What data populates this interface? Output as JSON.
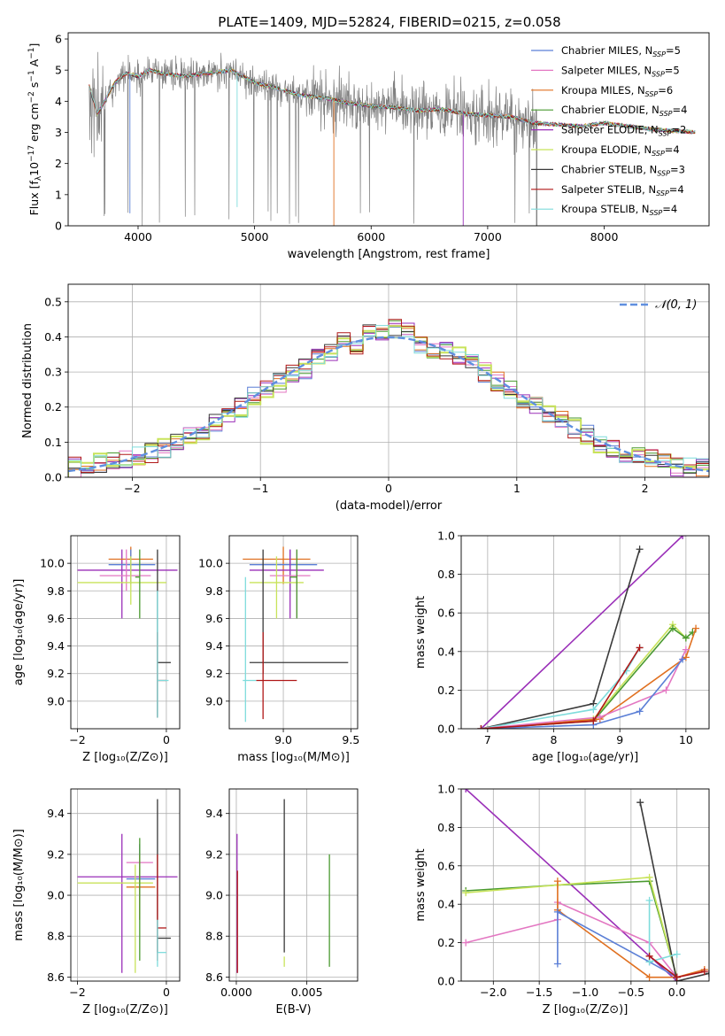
{
  "figure_title": "PLATE=1409, MJD=52824, FIBERID=0215, z=0.058",
  "colors": {
    "chabrier_miles": "#5b7fd6",
    "salpeter_miles": "#e377c2",
    "kroupa_miles": "#e07020",
    "chabrier_elodie": "#4a9a30",
    "salpeter_elodie": "#9a2fb8",
    "kroupa_elodie": "#c8e35a",
    "chabrier_stelib": "#3a3a3a",
    "salpeter_stelib": "#b01818",
    "kroupa_stelib": "#7fdcdc",
    "data_gray": "#808080",
    "normal_curve": "#5f8fdf"
  },
  "chart_data": [
    {
      "id": "spectrum",
      "type": "line",
      "title": "PLATE=1409, MJD=52824, FIBERID=0215, z=0.058",
      "xlabel": "wavelength [Angstrom, rest frame]",
      "ylabel_parts": [
        "Flux [f",
        "λ",
        "10",
        "−17",
        " erg cm",
        "−2",
        " s",
        "−1",
        " A",
        "−1",
        "]"
      ],
      "xlim": [
        3400,
        8900
      ],
      "ylim": [
        0,
        6.2
      ],
      "xticks": [
        4000,
        5000,
        6000,
        7000,
        8000
      ],
      "yticks": [
        0,
        1,
        2,
        3,
        4,
        5,
        6
      ],
      "legend_position": "top-right",
      "legend": [
        {
          "label": "Chabrier MILES, N",
          "n": "5",
          "color_key": "chabrier_miles"
        },
        {
          "label": "Salpeter MILES, N",
          "n": "5",
          "color_key": "salpeter_miles"
        },
        {
          "label": "Kroupa MILES, N",
          "n": "6",
          "color_key": "kroupa_miles"
        },
        {
          "label": "Chabrier ELODIE, N",
          "n": "4",
          "color_key": "chabrier_elodie"
        },
        {
          "label": "Salpeter ELODIE, N",
          "n": "2",
          "color_key": "salpeter_elodie"
        },
        {
          "label": "Kroupa ELODIE, N",
          "n": "4",
          "color_key": "kroupa_elodie"
        },
        {
          "label": "Chabrier STELIB, N",
          "n": "3",
          "color_key": "chabrier_stelib"
        },
        {
          "label": "Salpeter STELIB, N",
          "n": "4",
          "color_key": "salpeter_stelib"
        },
        {
          "label": "Kroupa STELIB, N",
          "n": "4",
          "color_key": "kroupa_stelib"
        }
      ],
      "legend_sub": "SSP",
      "continuum": {
        "x": [
          3580,
          3650,
          3700,
          3800,
          3900,
          4000,
          4100,
          4200,
          4400,
          4600,
          4800,
          5000,
          5200,
          5400,
          5600,
          5800,
          6000,
          6200,
          6400,
          6600,
          6800,
          7000,
          7200,
          7400,
          7600,
          7800,
          8000,
          8200,
          8400,
          8600,
          8800
        ],
        "y": [
          4.5,
          3.6,
          3.9,
          4.6,
          4.9,
          4.8,
          5.0,
          4.9,
          4.8,
          4.9,
          5.0,
          4.6,
          4.4,
          4.2,
          4.1,
          3.95,
          3.85,
          3.8,
          3.7,
          3.75,
          3.6,
          3.55,
          3.5,
          3.3,
          3.25,
          3.2,
          3.3,
          3.2,
          3.1,
          3.05,
          3.0
        ]
      },
      "data_noise_amplitude": 0.9
    },
    {
      "id": "residuals",
      "type": "area",
      "xlabel": "(data-model)/error",
      "ylabel": "Normed distribution",
      "xlim": [
        -2.5,
        2.5
      ],
      "ylim": [
        0,
        0.55
      ],
      "xticks": [
        -2,
        -1,
        0,
        1,
        2
      ],
      "yticks": [
        0.0,
        0.1,
        0.2,
        0.3,
        0.4,
        0.5
      ],
      "legend_position": "top-right",
      "legend_label": "𝒩(0, 1)",
      "bin_width": 0.1,
      "bin_start": -2.5,
      "base_histogram": [
        0.03,
        0.04,
        0.04,
        0.05,
        0.05,
        0.06,
        0.07,
        0.08,
        0.1,
        0.12,
        0.13,
        0.16,
        0.18,
        0.2,
        0.23,
        0.25,
        0.27,
        0.29,
        0.31,
        0.34,
        0.36,
        0.39,
        0.38,
        0.41,
        0.42,
        0.42,
        0.41,
        0.38,
        0.37,
        0.36,
        0.34,
        0.32,
        0.3,
        0.27,
        0.25,
        0.22,
        0.2,
        0.18,
        0.16,
        0.14,
        0.12,
        0.1,
        0.08,
        0.07,
        0.06,
        0.05,
        0.04,
        0.03,
        0.03,
        0.03
      ]
    },
    {
      "id": "z_age",
      "type": "scatter",
      "xlabel": "Z [log₁₀(Z/Z⊙)]",
      "ylabel": "age  [log₁₀(age/yr)]",
      "xlim": [
        -2.15,
        0.3
      ],
      "ylim": [
        8.8,
        10.2
      ],
      "xticks": [
        -2,
        0
      ],
      "yticks": [
        9.0,
        9.2,
        9.4,
        9.6,
        9.8,
        10.0
      ],
      "points": [
        {
          "k": "salpeter_elodie",
          "x": -1.0,
          "xe": [
            -2.0,
            0.25
          ],
          "y": 9.95,
          "ye": [
            9.6,
            10.1
          ]
        },
        {
          "k": "kroupa_miles",
          "x": -0.8,
          "xe": [
            -1.3,
            -0.3
          ],
          "y": 10.03,
          "ye": [
            9.85,
            10.12
          ]
        },
        {
          "k": "chabrier_miles",
          "x": -0.8,
          "xe": [
            -1.3,
            -0.25
          ],
          "y": 9.99,
          "ye": [
            9.85,
            10.1
          ]
        },
        {
          "k": "salpeter_miles",
          "x": -0.9,
          "xe": [
            -1.5,
            -0.35
          ],
          "y": 9.91,
          "ye": [
            9.8,
            10.1
          ]
        },
        {
          "k": "kroupa_elodie",
          "x": -0.8,
          "xe": [
            -2.0,
            0.0
          ],
          "y": 9.86,
          "ye": [
            9.7,
            10.05
          ]
        },
        {
          "k": "chabrier_elodie",
          "x": -0.6,
          "xe": [
            -0.7,
            -0.6
          ],
          "y": 9.9,
          "ye": [
            9.6,
            10.1
          ]
        },
        {
          "k": "chabrier_stelib",
          "x": -0.2,
          "xe": [
            -0.2,
            0.1
          ],
          "y": 9.28,
          "ye": [
            8.88,
            10.1
          ]
        },
        {
          "k": "salpeter_stelib",
          "x": -0.2,
          "xe": [
            -0.2,
            0.0
          ],
          "y": 9.15,
          "ye": [
            8.88,
            9.5
          ]
        },
        {
          "k": "kroupa_stelib",
          "x": -0.2,
          "xe": [
            -0.2,
            0.05
          ],
          "y": 9.15,
          "ye": [
            8.88,
            9.8
          ]
        }
      ]
    },
    {
      "id": "mass_age",
      "type": "scatter",
      "xlabel": "mass [log₁₀(M/M⊙)]",
      "ylabel": "",
      "xlim": [
        8.6,
        9.55
      ],
      "ylim": [
        8.8,
        10.2
      ],
      "xticks": [
        8.5,
        9.0,
        9.5
      ],
      "yticks": [
        9.0,
        9.2,
        9.4,
        9.6,
        9.8,
        10.0
      ],
      "points": [
        {
          "k": "kroupa_miles",
          "x": 9.0,
          "xe": [
            8.7,
            9.2
          ],
          "y": 10.03,
          "ye": [
            9.85,
            10.12
          ]
        },
        {
          "k": "chabrier_miles",
          "x": 9.05,
          "xe": [
            8.75,
            9.25
          ],
          "y": 9.99,
          "ye": [
            9.8,
            10.1
          ]
        },
        {
          "k": "salpeter_elodie",
          "x": 9.05,
          "xe": [
            8.75,
            9.3
          ],
          "y": 9.95,
          "ye": [
            9.6,
            10.1
          ]
        },
        {
          "k": "salpeter_miles",
          "x": 9.1,
          "xe": [
            8.9,
            9.2
          ],
          "y": 9.91,
          "ye": [
            9.6,
            10.1
          ]
        },
        {
          "k": "kroupa_elodie",
          "x": 8.95,
          "xe": [
            8.75,
            9.15
          ],
          "y": 9.86,
          "ye": [
            9.6,
            10.05
          ]
        },
        {
          "k": "chabrier_elodie",
          "x": 9.1,
          "xe": [
            9.05,
            9.1
          ],
          "y": 9.9,
          "ye": [
            9.6,
            10.1
          ]
        },
        {
          "k": "chabrier_stelib",
          "x": 8.85,
          "xe": [
            8.75,
            9.48
          ],
          "y": 9.28,
          "ye": [
            9.2,
            10.1
          ]
        },
        {
          "k": "salpeter_stelib",
          "x": 8.85,
          "xe": [
            8.8,
            9.1
          ],
          "y": 9.15,
          "ye": [
            8.87,
            9.5
          ]
        },
        {
          "k": "kroupa_stelib",
          "x": 8.72,
          "xe": [
            8.7,
            8.8
          ],
          "y": 9.15,
          "ye": [
            8.85,
            9.9
          ]
        }
      ]
    },
    {
      "id": "age_weight",
      "type": "line",
      "xlabel": "age  [log₁₀(age/yr)]",
      "ylabel": "mass weight",
      "xlim": [
        6.6,
        10.35
      ],
      "ylim": [
        0,
        1.0
      ],
      "xticks": [
        7,
        8,
        9,
        10
      ],
      "yticks": [
        0.0,
        0.2,
        0.4,
        0.6,
        0.8,
        1.0
      ],
      "series": [
        {
          "k": "salpeter_elodie",
          "x": [
            6.9,
            9.95
          ],
          "y": [
            0.0,
            1.0
          ]
        },
        {
          "k": "chabrier_stelib",
          "x": [
            6.9,
            8.6,
            9.3
          ],
          "y": [
            0.0,
            0.13,
            0.93
          ]
        },
        {
          "k": "kroupa_elodie",
          "x": [
            6.9,
            8.6,
            9.8,
            10.0
          ],
          "y": [
            0.0,
            0.05,
            0.54,
            0.47
          ]
        },
        {
          "k": "chabrier_elodie",
          "x": [
            6.9,
            8.6,
            9.8,
            10.0,
            10.1
          ],
          "y": [
            0.0,
            0.04,
            0.52,
            0.47,
            0.5
          ]
        },
        {
          "k": "kroupa_stelib",
          "x": [
            6.9,
            8.6,
            9.1,
            9.3
          ],
          "y": [
            0.0,
            0.1,
            0.3,
            0.42
          ]
        },
        {
          "k": "kroupa_miles",
          "x": [
            6.9,
            8.7,
            10.0,
            10.15
          ],
          "y": [
            0.0,
            0.05,
            0.37,
            0.52
          ]
        },
        {
          "k": "salpeter_miles",
          "x": [
            6.9,
            8.7,
            9.7,
            10.0
          ],
          "y": [
            0.0,
            0.06,
            0.2,
            0.41
          ]
        },
        {
          "k": "chabrier_miles",
          "x": [
            6.9,
            8.6,
            9.3,
            9.95
          ],
          "y": [
            0.0,
            0.02,
            0.09,
            0.36
          ]
        },
        {
          "k": "salpeter_stelib",
          "x": [
            6.9,
            8.6,
            9.3
          ],
          "y": [
            0.0,
            0.04,
            0.42
          ]
        }
      ]
    },
    {
      "id": "z_mass",
      "type": "scatter",
      "xlabel": "Z [log₁₀(Z/Z⊙)]",
      "ylabel": "mass [log₁₀(M/M⊙)]",
      "xlim": [
        -2.15,
        0.3
      ],
      "ylim": [
        8.58,
        9.52
      ],
      "xticks": [
        -2,
        0
      ],
      "yticks": [
        8.6,
        8.8,
        9.0,
        9.2,
        9.4
      ],
      "points": [
        {
          "k": "salpeter_elodie",
          "x": -1.0,
          "xe": [
            -2.0,
            0.25
          ],
          "y": 9.09,
          "ye": [
            8.62,
            9.3
          ]
        },
        {
          "k": "salpeter_miles",
          "x": -0.6,
          "xe": [
            -0.9,
            -0.3
          ],
          "y": 9.16,
          "ye": [
            8.88,
            9.25
          ]
        },
        {
          "k": "chabrier_miles",
          "x": -0.6,
          "xe": [
            -0.9,
            -0.25
          ],
          "y": 9.08,
          "ye": [
            8.88,
            9.25
          ]
        },
        {
          "k": "kroupa_miles",
          "x": -0.6,
          "xe": [
            -0.9,
            -0.25
          ],
          "y": 9.04,
          "ye": [
            8.88,
            9.2
          ]
        },
        {
          "k": "kroupa_elodie",
          "x": -0.7,
          "xe": [
            -2.0,
            -0.3
          ],
          "y": 9.06,
          "ye": [
            8.62,
            9.15
          ]
        },
        {
          "k": "chabrier_elodie",
          "x": -0.6,
          "xe": [
            -0.6,
            -0.6
          ],
          "y": 9.1,
          "ye": [
            8.68,
            9.28
          ]
        },
        {
          "k": "chabrier_stelib",
          "x": -0.2,
          "xe": [
            -0.2,
            0.1
          ],
          "y": 8.79,
          "ye": [
            8.72,
            9.47
          ]
        },
        {
          "k": "salpeter_stelib",
          "x": -0.2,
          "xe": [
            -0.2,
            0.0
          ],
          "y": 8.84,
          "ye": [
            8.68,
            9.2
          ]
        },
        {
          "k": "kroupa_stelib",
          "x": -0.2,
          "xe": [
            -0.2,
            0.0
          ],
          "y": 8.72,
          "ye": [
            8.65,
            8.88
          ]
        }
      ]
    },
    {
      "id": "ebv_mass",
      "type": "scatter",
      "xlabel": "E(B-V)",
      "ylabel": "",
      "xlim": [
        -0.0005,
        0.0086
      ],
      "ylim": [
        8.58,
        9.52
      ],
      "xticks": [
        0.0,
        0.005
      ],
      "xtick_labels": [
        "0.000",
        "0.005"
      ],
      "yticks": [
        8.6,
        8.8,
        9.0,
        9.2,
        9.4
      ],
      "points": [
        {
          "k": "salpeter_elodie",
          "x": 5e-05,
          "y": 9.09,
          "ye": [
            8.62,
            9.3
          ]
        },
        {
          "k": "salpeter_stelib",
          "x": 8e-05,
          "y": 8.84,
          "ye": [
            8.62,
            9.12
          ]
        },
        {
          "k": "kroupa_elodie",
          "x": 0.0034,
          "y": 8.67,
          "ye": [
            8.65,
            8.7
          ]
        },
        {
          "k": "chabrier_stelib",
          "x": 0.0034,
          "y": 9.0,
          "ye": [
            8.72,
            9.47
          ]
        },
        {
          "k": "chabrier_elodie",
          "x": 0.0066,
          "y": 8.9,
          "ye": [
            8.65,
            9.2
          ]
        }
      ]
    },
    {
      "id": "z_weight",
      "type": "line",
      "xlabel": "Z [log₁₀(Z/Z⊙)]",
      "ylabel": "mass weight",
      "xlim": [
        -2.35,
        0.35
      ],
      "ylim": [
        0,
        1.0
      ],
      "xticks": [
        -2.0,
        -1.5,
        -1.0,
        -0.5,
        0.0
      ],
      "yticks": [
        0.0,
        0.2,
        0.4,
        0.6,
        0.8,
        1.0
      ],
      "series": [
        {
          "k": "salpeter_elodie",
          "x": [
            -2.3,
            0.0
          ],
          "y": [
            1.0,
            0.0
          ]
        },
        {
          "k": "chabrier_elodie",
          "x": [
            -2.3,
            -1.3,
            -0.3,
            0.0
          ],
          "y": [
            0.47,
            0.5,
            0.52,
            0.02
          ]
        },
        {
          "k": "kroupa_elodie",
          "x": [
            -2.3,
            -1.3,
            -0.3,
            0.0
          ],
          "y": [
            0.46,
            0.5,
            0.54,
            0.02
          ]
        },
        {
          "k": "salpeter_miles",
          "x": [
            -2.3,
            -1.3,
            -1.3,
            -0.3,
            0.0
          ],
          "y": [
            0.2,
            0.32,
            0.41,
            0.2,
            0.02
          ]
        },
        {
          "k": "kroupa_miles",
          "x": [
            -1.3,
            -1.3,
            -0.3,
            0.0,
            0.3
          ],
          "y": [
            0.52,
            0.37,
            0.02,
            0.02,
            0.06
          ]
        },
        {
          "k": "chabrier_miles",
          "x": [
            -1.3,
            -1.3,
            -0.3,
            0.0
          ],
          "y": [
            0.09,
            0.36,
            0.1,
            0.02
          ]
        },
        {
          "k": "chabrier_stelib",
          "x": [
            -0.4,
            0.0,
            0.35
          ],
          "y": [
            0.93,
            0.0,
            0.04
          ]
        },
        {
          "k": "kroupa_stelib",
          "x": [
            -0.3,
            -0.3,
            0.0
          ],
          "y": [
            0.42,
            0.1,
            0.14
          ]
        },
        {
          "k": "salpeter_stelib",
          "x": [
            -0.3,
            0.0,
            0.3
          ],
          "y": [
            0.13,
            0.02,
            0.05
          ]
        }
      ]
    }
  ]
}
